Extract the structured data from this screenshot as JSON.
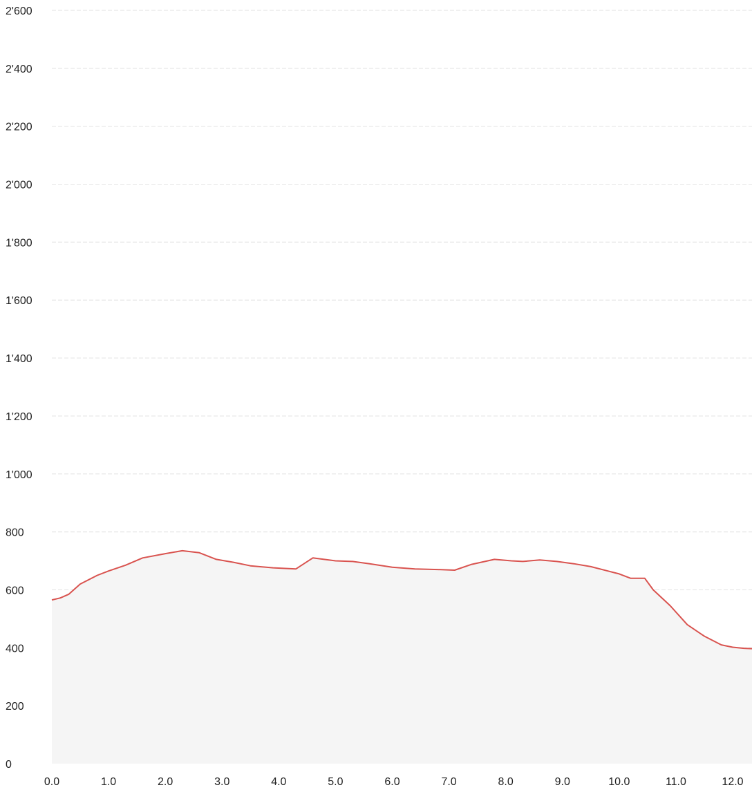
{
  "chart_data": {
    "type": "area",
    "title": "",
    "xlabel": "",
    "ylabel": "",
    "xlim": [
      0,
      12.35
    ],
    "ylim": [
      0,
      2600
    ],
    "x_ticks": [
      "0.0",
      "1.0",
      "2.0",
      "3.0",
      "4.0",
      "5.0",
      "6.0",
      "7.0",
      "8.0",
      "9.0",
      "10.0",
      "11.0",
      "12.0"
    ],
    "y_ticks": [
      "0",
      "200",
      "400",
      "600",
      "800",
      "1'000",
      "1'200",
      "1'400",
      "1'600",
      "1'800",
      "2'000",
      "2'200",
      "2'400",
      "2'600"
    ],
    "grid": true,
    "colors": {
      "line": "#d9534f",
      "fill": "#f5f5f5",
      "grid": "#e6e6e6"
    },
    "series": [
      {
        "x": [
          0.0,
          0.15,
          0.3,
          0.5,
          0.8,
          1.0,
          1.3,
          1.6,
          2.0,
          2.3,
          2.6,
          2.9,
          3.2,
          3.5,
          3.9,
          4.3,
          4.6,
          4.8,
          5.0,
          5.3,
          5.6,
          6.0,
          6.4,
          6.8,
          7.1,
          7.4,
          7.8,
          8.1,
          8.3,
          8.6,
          8.9,
          9.2,
          9.5,
          9.8,
          10.0,
          10.2,
          10.45,
          10.6,
          10.9,
          11.2,
          11.5,
          11.8,
          12.0,
          12.2,
          12.35
        ],
        "values": [
          565,
          572,
          585,
          620,
          650,
          665,
          685,
          710,
          725,
          735,
          728,
          705,
          695,
          683,
          676,
          672,
          710,
          705,
          700,
          698,
          690,
          678,
          672,
          670,
          668,
          688,
          705,
          700,
          698,
          703,
          698,
          690,
          680,
          665,
          655,
          640,
          640,
          600,
          545,
          480,
          440,
          410,
          402,
          398,
          397
        ]
      }
    ]
  }
}
